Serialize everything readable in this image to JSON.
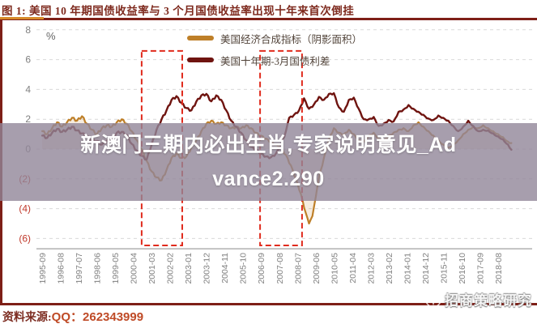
{
  "figure": {
    "title": "图 1:  美国 10 年期国债收益率与 3 个月国债收益率出现十年来首次倒挂",
    "source_prefix": "资料来源:",
    "source_value": "QQ：262343999"
  },
  "overlay_banner": {
    "line1": "新澳门三期内必出生肖,专家说明意见_Ad",
    "line2": "vance2.290"
  },
  "watermark": {
    "label": "招商策略研究"
  },
  "colors": {
    "accent_red": "#7E1F17",
    "accent_orange": "#D78A2A",
    "tick_gray": "#808080",
    "negative_tick": "#c0392b",
    "gridline": "#d9d9d9",
    "axis_line": "#a0a0a0",
    "highlight_box": "#E02B1D",
    "banner_bg": "rgba(145,134,152,0.8)",
    "composite_fill": "rgba(194,130,42,0.15)"
  },
  "chart_data": {
    "type": "line",
    "title": "",
    "xlabel": "",
    "ylabel": "%",
    "ylim": [
      -6.7,
      8
    ],
    "x_baseline": -6.69,
    "yticks": [
      8,
      6,
      4,
      2,
      0,
      -2,
      -4,
      -6
    ],
    "ytick_labels": [
      "8",
      "6",
      "4",
      "2",
      "0",
      "(2)",
      "(4)",
      "(6)"
    ],
    "grid": "horizontal-dashed",
    "legend_position": "top-center",
    "xtick_labels": [
      "1995-09",
      "1996-08",
      "1997-07",
      "1998-06",
      "1999-05",
      "2000-04",
      "2001-03",
      "2002-02",
      "2003-01",
      "2003-12",
      "2004-11",
      "2005-10",
      "2006-09",
      "2007-08",
      "2008-07",
      "2009-06",
      "2010-05",
      "2011-04",
      "2012-03",
      "2013-02",
      "2014-01",
      "2014-12",
      "2015-11",
      "2016-10",
      "2017-09",
      "2018-08"
    ],
    "highlight_boxes": [
      {
        "x_from": 2000.67,
        "x_to": 2002.71,
        "y_from": -6.47,
        "y_to": 6.58
      },
      {
        "x_from": 2006.62,
        "x_to": 2008.73,
        "y_from": -6.47,
        "y_to": 6.58
      }
    ],
    "series": [
      {
        "name": "美国经济合成指标（阴影面积）",
        "color": "#BE7F28",
        "style": "area-line",
        "points": [
          [
            1995.67,
            1.2
          ],
          [
            1995.92,
            1.0
          ],
          [
            1996.17,
            1.4
          ],
          [
            1996.42,
            1.8
          ],
          [
            1996.67,
            1.5
          ],
          [
            1996.92,
            1.8
          ],
          [
            1997.17,
            2.1
          ],
          [
            1997.42,
            1.9
          ],
          [
            1997.67,
            2.2
          ],
          [
            1997.92,
            1.7
          ],
          [
            1998.17,
            1.3
          ],
          [
            1998.42,
            1.0
          ],
          [
            1998.67,
            1.4
          ],
          [
            1998.92,
            1.6
          ],
          [
            1999.17,
            1.5
          ],
          [
            1999.42,
            1.8
          ],
          [
            1999.67,
            2.0
          ],
          [
            1999.92,
            1.7
          ],
          [
            2000.17,
            1.2
          ],
          [
            2000.42,
            0.6
          ],
          [
            2000.67,
            0.0
          ],
          [
            2000.92,
            -0.8
          ],
          [
            2001.17,
            -1.5
          ],
          [
            2001.42,
            -1.9
          ],
          [
            2001.67,
            -2.1
          ],
          [
            2001.92,
            -1.4
          ],
          [
            2002.17,
            -0.6
          ],
          [
            2002.42,
            -0.3
          ],
          [
            2002.67,
            -0.6
          ],
          [
            2002.92,
            -0.5
          ],
          [
            2003.17,
            0.1
          ],
          [
            2003.42,
            0.6
          ],
          [
            2003.67,
            1.2
          ],
          [
            2003.92,
            1.7
          ],
          [
            2004.17,
            1.9
          ],
          [
            2004.42,
            1.7
          ],
          [
            2004.67,
            1.8
          ],
          [
            2004.92,
            1.6
          ],
          [
            2005.17,
            1.4
          ],
          [
            2005.42,
            1.5
          ],
          [
            2005.67,
            1.4
          ],
          [
            2005.92,
            1.6
          ],
          [
            2006.17,
            1.4
          ],
          [
            2006.42,
            1.1
          ],
          [
            2006.67,
            0.9
          ],
          [
            2006.92,
            0.7
          ],
          [
            2007.17,
            0.5
          ],
          [
            2007.42,
            0.3
          ],
          [
            2007.67,
            0.1
          ],
          [
            2007.92,
            -0.4
          ],
          [
            2008.17,
            -1.1
          ],
          [
            2008.42,
            -2.0
          ],
          [
            2008.67,
            -3.0
          ],
          [
            2008.92,
            -4.3
          ],
          [
            2009.08,
            -5.0
          ],
          [
            2009.25,
            -4.5
          ],
          [
            2009.42,
            -3.2
          ],
          [
            2009.58,
            -1.9
          ],
          [
            2009.83,
            -0.6
          ],
          [
            2010.08,
            0.7
          ],
          [
            2010.33,
            1.4
          ],
          [
            2010.58,
            1.1
          ],
          [
            2010.83,
            1.0
          ],
          [
            2011.08,
            1.3
          ],
          [
            2011.33,
            1.0
          ],
          [
            2011.58,
            0.6
          ],
          [
            2011.83,
            0.5
          ],
          [
            2012.08,
            0.9
          ],
          [
            2012.33,
            1.1
          ],
          [
            2012.58,
            0.7
          ],
          [
            2012.83,
            0.6
          ],
          [
            2013.08,
            0.9
          ],
          [
            2013.33,
            1.1
          ],
          [
            2013.58,
            1.3
          ],
          [
            2013.83,
            1.4
          ],
          [
            2014.08,
            1.2
          ],
          [
            2014.33,
            1.6
          ],
          [
            2014.58,
            1.8
          ],
          [
            2014.83,
            1.5
          ],
          [
            2015.08,
            1.2
          ],
          [
            2015.33,
            0.9
          ],
          [
            2015.58,
            0.6
          ],
          [
            2015.83,
            0.3
          ],
          [
            2016.08,
            0.1
          ],
          [
            2016.33,
            0.3
          ],
          [
            2016.58,
            0.6
          ],
          [
            2016.83,
            1.0
          ],
          [
            2017.08,
            1.3
          ],
          [
            2017.33,
            1.5
          ],
          [
            2017.58,
            1.4
          ],
          [
            2017.83,
            1.6
          ],
          [
            2018.08,
            1.4
          ],
          [
            2018.33,
            1.2
          ],
          [
            2018.58,
            1.0
          ],
          [
            2018.83,
            0.8
          ],
          [
            2019.08,
            0.5
          ],
          [
            2019.25,
            0.4
          ]
        ]
      },
      {
        "name": "美国十年期-3月国债利差",
        "color": "#6F1410",
        "style": "line",
        "points": [
          [
            1995.67,
            0.9
          ],
          [
            1995.92,
            0.75
          ],
          [
            1996.17,
            1.1
          ],
          [
            1996.42,
            1.35
          ],
          [
            1996.67,
            1.15
          ],
          [
            1996.92,
            1.3
          ],
          [
            1997.17,
            1.5
          ],
          [
            1997.42,
            1.25
          ],
          [
            1997.67,
            1.05
          ],
          [
            1997.92,
            0.85
          ],
          [
            1998.17,
            0.6
          ],
          [
            1998.42,
            0.55
          ],
          [
            1998.67,
            0.3
          ],
          [
            1998.92,
            0.55
          ],
          [
            1999.17,
            0.75
          ],
          [
            1999.42,
            1.1
          ],
          [
            1999.67,
            1.15
          ],
          [
            1999.92,
            0.95
          ],
          [
            2000.17,
            0.35
          ],
          [
            2000.42,
            -0.1
          ],
          [
            2000.67,
            -0.45
          ],
          [
            2000.92,
            -0.7
          ],
          [
            2001.17,
            0.3
          ],
          [
            2001.42,
            1.3
          ],
          [
            2001.67,
            2.0
          ],
          [
            2001.92,
            2.6
          ],
          [
            2002.17,
            3.3
          ],
          [
            2002.42,
            3.55
          ],
          [
            2002.67,
            3.1
          ],
          [
            2002.92,
            2.75
          ],
          [
            2003.17,
            2.6
          ],
          [
            2003.42,
            3.2
          ],
          [
            2003.67,
            3.6
          ],
          [
            2003.92,
            3.7
          ],
          [
            2004.17,
            3.2
          ],
          [
            2004.42,
            3.6
          ],
          [
            2004.67,
            3.3
          ],
          [
            2004.92,
            2.6
          ],
          [
            2005.17,
            1.9
          ],
          [
            2005.42,
            1.5
          ],
          [
            2005.67,
            1.1
          ],
          [
            2005.92,
            0.6
          ],
          [
            2006.17,
            0.15
          ],
          [
            2006.42,
            0.0
          ],
          [
            2006.67,
            -0.3
          ],
          [
            2006.92,
            -0.5
          ],
          [
            2007.17,
            -0.55
          ],
          [
            2007.42,
            -0.3
          ],
          [
            2007.67,
            0.3
          ],
          [
            2007.92,
            1.2
          ],
          [
            2008.08,
            2.1
          ],
          [
            2008.33,
            2.3
          ],
          [
            2008.58,
            2.6
          ],
          [
            2008.83,
            3.4
          ],
          [
            2009.08,
            2.7
          ],
          [
            2009.33,
            3.0
          ],
          [
            2009.58,
            3.5
          ],
          [
            2009.83,
            3.3
          ],
          [
            2010.08,
            3.7
          ],
          [
            2010.33,
            3.75
          ],
          [
            2010.58,
            2.8
          ],
          [
            2010.83,
            2.5
          ],
          [
            2011.08,
            3.3
          ],
          [
            2011.33,
            3.45
          ],
          [
            2011.58,
            2.7
          ],
          [
            2011.83,
            2.0
          ],
          [
            2012.08,
            2.0
          ],
          [
            2012.33,
            2.15
          ],
          [
            2012.58,
            1.55
          ],
          [
            2012.83,
            1.7
          ],
          [
            2013.08,
            1.95
          ],
          [
            2013.33,
            1.85
          ],
          [
            2013.58,
            2.5
          ],
          [
            2013.83,
            2.65
          ],
          [
            2014.08,
            2.95
          ],
          [
            2014.33,
            2.7
          ],
          [
            2014.58,
            2.5
          ],
          [
            2014.83,
            2.3
          ],
          [
            2015.08,
            2.05
          ],
          [
            2015.33,
            1.95
          ],
          [
            2015.58,
            2.25
          ],
          [
            2015.83,
            2.1
          ],
          [
            2016.08,
            1.9
          ],
          [
            2016.33,
            1.55
          ],
          [
            2016.58,
            1.2
          ],
          [
            2016.83,
            1.5
          ],
          [
            2017.08,
            1.9
          ],
          [
            2017.33,
            1.55
          ],
          [
            2017.58,
            1.2
          ],
          [
            2017.83,
            1.3
          ],
          [
            2018.08,
            1.25
          ],
          [
            2018.33,
            1.05
          ],
          [
            2018.58,
            0.85
          ],
          [
            2018.83,
            0.65
          ],
          [
            2019.08,
            0.3
          ],
          [
            2019.25,
            -0.05
          ]
        ]
      }
    ]
  }
}
